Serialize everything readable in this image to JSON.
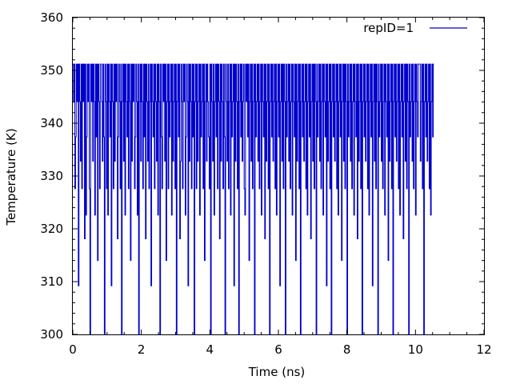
{
  "chart_data": {
    "type": "line",
    "xlabel": "Time (ns)",
    "ylabel": "Temperature (K)",
    "xlim": [
      0,
      12
    ],
    "ylim": [
      300,
      360
    ],
    "xticks": [
      0,
      2,
      4,
      6,
      8,
      10,
      12
    ],
    "yticks": [
      300,
      310,
      320,
      330,
      340,
      350,
      360
    ],
    "grid": false,
    "legend_position": "top-right",
    "temperature_levels": [
      300.0,
      304.1,
      309.2,
      314.0,
      318.1,
      322.6,
      327.6,
      332.8,
      337.4,
      344.1,
      351.2
    ],
    "time_range": [
      0.0,
      10.5
    ],
    "exchange_interval": 0.02,
    "series": [
      {
        "name": "repID=1",
        "color": "#0000cc",
        "x_start": 0.0,
        "x_step": 0.02,
        "level_index_sequence": [
          10,
          9,
          10,
          6,
          8,
          10,
          9,
          10,
          2,
          10,
          9,
          7,
          10,
          6,
          10,
          9,
          10,
          4,
          10,
          5,
          8,
          10,
          9,
          10,
          6,
          0,
          10,
          9,
          10,
          7,
          10,
          9,
          5,
          10,
          8,
          10,
          3,
          10,
          9,
          6,
          10,
          10,
          9,
          7,
          10,
          8,
          0,
          10,
          9,
          6,
          10,
          5,
          10,
          9,
          8,
          10,
          2,
          10,
          9,
          6,
          10,
          7,
          10,
          9,
          10,
          4,
          8,
          10,
          9,
          6,
          10,
          0,
          9,
          10,
          7,
          10,
          5,
          10,
          9,
          8,
          10,
          6,
          10,
          9,
          3,
          10,
          7,
          10,
          9,
          10,
          6,
          8,
          10,
          9,
          5,
          10,
          0,
          9,
          10,
          7,
          10,
          9,
          6,
          10,
          8,
          10,
          4,
          10,
          9,
          7,
          10,
          6,
          9,
          10,
          2,
          10,
          9,
          8,
          10,
          6,
          10,
          9,
          7,
          10,
          5,
          10,
          9,
          0,
          10,
          8,
          6,
          10,
          9,
          10,
          7,
          10,
          3,
          9,
          10,
          6,
          10,
          8,
          9,
          10,
          5,
          10,
          7,
          9,
          10,
          6,
          10,
          0,
          9,
          10,
          8,
          10,
          4,
          7,
          10,
          9,
          6,
          10,
          9,
          10,
          5,
          8,
          10,
          9,
          2,
          10,
          7,
          10,
          9,
          6,
          10,
          8,
          10,
          0,
          9,
          10,
          6,
          10,
          7,
          9,
          10,
          5,
          10,
          8,
          9,
          10,
          6,
          10,
          3,
          9,
          10,
          7,
          10,
          9,
          8,
          6,
          10,
          0,
          10,
          9,
          7,
          10,
          5,
          9,
          10,
          8,
          10,
          6,
          10,
          9,
          4,
          10,
          7,
          10,
          9,
          6,
          10,
          8,
          0,
          10,
          9,
          7,
          10,
          6,
          9,
          10,
          5,
          10,
          8,
          9,
          10,
          2,
          10,
          7,
          10,
          9,
          6,
          10,
          0,
          9,
          10,
          8,
          10,
          7,
          9,
          10,
          6,
          5,
          10,
          9,
          10,
          8,
          10,
          3,
          9,
          10,
          7,
          10,
          6,
          9,
          10,
          0,
          10,
          8,
          9,
          10,
          7,
          10,
          6,
          9,
          10,
          5,
          10,
          9,
          8,
          10,
          4,
          10,
          7,
          9,
          10,
          6,
          10,
          0,
          9,
          10,
          8,
          10,
          7,
          9,
          10,
          6,
          10,
          5,
          9,
          10,
          8,
          10,
          2,
          9,
          10,
          7,
          10,
          6,
          10,
          9,
          0,
          10,
          8,
          9,
          10,
          7,
          10,
          6,
          9,
          10,
          5,
          10,
          9,
          8,
          10,
          3,
          10,
          7,
          9,
          10,
          6,
          10,
          0,
          9,
          10,
          8,
          10,
          7,
          9,
          10,
          6,
          10,
          5,
          9,
          10,
          8,
          10,
          4,
          9,
          10,
          7,
          10,
          6,
          10,
          9,
          0,
          10,
          8,
          9,
          10,
          7,
          10,
          6,
          9,
          10,
          5,
          10,
          9,
          8,
          10,
          2,
          10,
          7,
          9,
          10,
          6,
          10,
          0,
          9,
          10,
          8,
          10,
          7,
          9,
          10,
          6,
          10,
          5,
          9,
          10,
          8,
          10,
          3,
          9,
          10,
          7,
          10,
          6,
          10,
          9,
          0,
          10,
          8,
          9,
          10,
          7,
          10,
          6,
          9,
          10,
          5,
          10,
          9,
          8,
          10,
          4,
          10,
          7,
          9,
          10,
          6,
          10,
          0,
          9,
          10,
          8,
          10,
          7,
          9,
          10,
          6,
          10,
          5,
          9,
          10,
          8,
          10,
          2,
          9,
          10,
          7,
          10,
          6,
          10,
          9,
          0,
          10,
          8,
          9,
          10,
          7,
          10,
          6,
          9,
          10,
          5,
          10,
          9,
          8,
          10,
          3,
          10,
          7,
          9,
          10,
          6,
          10,
          0,
          9,
          10,
          8,
          10,
          7,
          9,
          10,
          6,
          10,
          5,
          9,
          10,
          8,
          10,
          4,
          9,
          10,
          7,
          10,
          6,
          10,
          9,
          0,
          10,
          8,
          9,
          10,
          7,
          10,
          6,
          9,
          10,
          5,
          10,
          9,
          8,
          10,
          10,
          10,
          7,
          9,
          10,
          6,
          10,
          0,
          9,
          10,
          8,
          10,
          7,
          9,
          10,
          6,
          10,
          5,
          9,
          10,
          8,
          10
        ]
      }
    ]
  }
}
